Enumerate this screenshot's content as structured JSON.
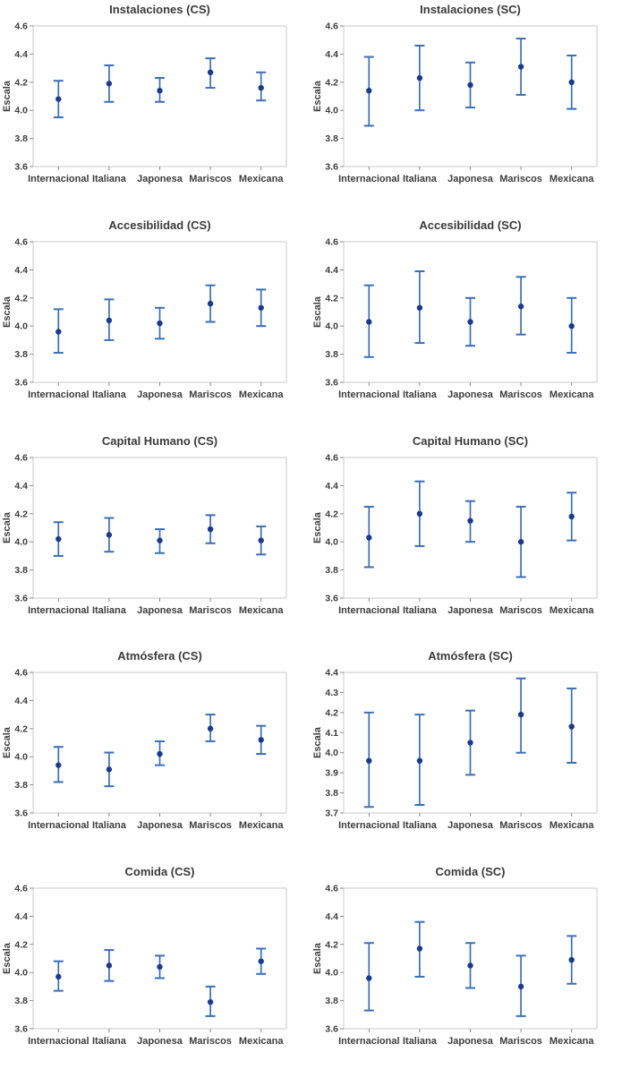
{
  "page": {
    "background": "#ffffff",
    "description_labels": {
      "ylabel": "Escala"
    }
  },
  "chart_defaults": {
    "categories": [
      "Internacional",
      "Italiana",
      "Japonesa",
      "Mariscos",
      "Mexicana"
    ],
    "ylabel": "Escala",
    "grid": false,
    "legend": "none",
    "colors": {
      "interval_line": "#3a6fb5",
      "marker": "#1b3a8c",
      "frame": "#c9c9c9",
      "tick": "#8a8a8a",
      "text": "#3d3d3d"
    }
  },
  "chart_data": [
    {
      "type": "scatter",
      "subtype": "interval-plot",
      "title": "Instalaciones (CS)",
      "ylabel": "Escala",
      "categories": [
        "Internacional",
        "Italiana",
        "Japonesa",
        "Mariscos",
        "Mexicana"
      ],
      "means": [
        4.08,
        4.19,
        4.14,
        4.27,
        4.16
      ],
      "ci_low": [
        3.95,
        4.06,
        4.06,
        4.16,
        4.07
      ],
      "ci_high": [
        4.21,
        4.32,
        4.23,
        4.37,
        4.27
      ],
      "ylim": [
        3.6,
        4.6
      ],
      "ytick_step": 0.2
    },
    {
      "type": "scatter",
      "subtype": "interval-plot",
      "title": "Instalaciones (SC)",
      "ylabel": "Escala",
      "categories": [
        "Internacional",
        "Italiana",
        "Japonesa",
        "Mariscos",
        "Mexicana"
      ],
      "means": [
        4.14,
        4.23,
        4.18,
        4.31,
        4.2
      ],
      "ci_low": [
        3.89,
        4.0,
        4.02,
        4.11,
        4.01
      ],
      "ci_high": [
        4.38,
        4.46,
        4.34,
        4.51,
        4.39
      ],
      "ylim": [
        3.6,
        4.6
      ],
      "ytick_step": 0.2
    },
    {
      "type": "scatter",
      "subtype": "interval-plot",
      "title": "Accesibilidad (CS)",
      "ylabel": "Escala",
      "categories": [
        "Internacional",
        "Italiana",
        "Japonesa",
        "Mariscos",
        "Mexicana"
      ],
      "means": [
        3.96,
        4.04,
        4.02,
        4.16,
        4.13
      ],
      "ci_low": [
        3.81,
        3.9,
        3.91,
        4.03,
        4.0
      ],
      "ci_high": [
        4.12,
        4.19,
        4.13,
        4.29,
        4.26
      ],
      "ylim": [
        3.6,
        4.6
      ],
      "ytick_step": 0.2
    },
    {
      "type": "scatter",
      "subtype": "interval-plot",
      "title": "Accesibilidad (SC)",
      "ylabel": "Escala",
      "categories": [
        "Internacional",
        "Italiana",
        "Japonesa",
        "Mariscos",
        "Mexicana"
      ],
      "means": [
        4.03,
        4.13,
        4.03,
        4.14,
        4.0
      ],
      "ci_low": [
        3.78,
        3.88,
        3.86,
        3.94,
        3.81
      ],
      "ci_high": [
        4.29,
        4.39,
        4.2,
        4.35,
        4.2
      ],
      "ylim": [
        3.6,
        4.6
      ],
      "ytick_step": 0.2
    },
    {
      "type": "scatter",
      "subtype": "interval-plot",
      "title": "Capital Humano (CS)",
      "ylabel": "Escala",
      "categories": [
        "Internacional",
        "Italiana",
        "Japonesa",
        "Mariscos",
        "Mexicana"
      ],
      "means": [
        4.02,
        4.05,
        4.01,
        4.09,
        4.01
      ],
      "ci_low": [
        3.9,
        3.93,
        3.92,
        3.99,
        3.91
      ],
      "ci_high": [
        4.14,
        4.17,
        4.09,
        4.19,
        4.11
      ],
      "ylim": [
        3.6,
        4.6
      ],
      "ytick_step": 0.2
    },
    {
      "type": "scatter",
      "subtype": "interval-plot",
      "title": "Capital Humano (SC)",
      "ylabel": "Escala",
      "categories": [
        "Internacional",
        "Italiana",
        "Japonesa",
        "Mariscos",
        "Mexicana"
      ],
      "means": [
        4.03,
        4.2,
        4.15,
        4.0,
        4.18
      ],
      "ci_low": [
        3.82,
        3.97,
        4.0,
        3.75,
        4.01
      ],
      "ci_high": [
        4.25,
        4.43,
        4.29,
        4.25,
        4.35
      ],
      "ylim": [
        3.6,
        4.6
      ],
      "ytick_step": 0.2
    },
    {
      "type": "scatter",
      "subtype": "interval-plot",
      "title": "Atmósfera (CS)",
      "ylabel": "Escala",
      "categories": [
        "Internacional",
        "Italiana",
        "Japonesa",
        "Mariscos",
        "Mexicana"
      ],
      "means": [
        3.94,
        3.91,
        4.02,
        4.2,
        4.12
      ],
      "ci_low": [
        3.82,
        3.79,
        3.94,
        4.11,
        4.02
      ],
      "ci_high": [
        4.07,
        4.03,
        4.11,
        4.3,
        4.22
      ],
      "ylim": [
        3.6,
        4.6
      ],
      "ytick_step": 0.2
    },
    {
      "type": "scatter",
      "subtype": "interval-plot",
      "title": "Atmósfera (SC)",
      "ylabel": "Escala",
      "categories": [
        "Internacional",
        "Italiana",
        "Japonesa",
        "Mariscos",
        "Mexicana"
      ],
      "means": [
        3.96,
        3.96,
        4.05,
        4.19,
        4.13
      ],
      "ci_low": [
        3.73,
        3.74,
        3.89,
        4.0,
        3.95
      ],
      "ci_high": [
        4.2,
        4.19,
        4.21,
        4.37,
        4.32
      ],
      "ylim": [
        3.7,
        4.4
      ],
      "ytick_step": 0.1
    },
    {
      "type": "scatter",
      "subtype": "interval-plot",
      "title": "Comida (CS)",
      "ylabel": "Escala",
      "categories": [
        "Internacional",
        "Italiana",
        "Japonesa",
        "Mariscos",
        "Mexicana"
      ],
      "means": [
        3.97,
        4.05,
        4.04,
        3.79,
        4.08
      ],
      "ci_low": [
        3.87,
        3.94,
        3.96,
        3.69,
        3.99
      ],
      "ci_high": [
        4.08,
        4.16,
        4.12,
        3.9,
        4.17
      ],
      "ylim": [
        3.6,
        4.6
      ],
      "ytick_step": 0.2
    },
    {
      "type": "scatter",
      "subtype": "interval-plot",
      "title": "Comida (SC)",
      "ylabel": "Escala",
      "categories": [
        "Internacional",
        "Italiana",
        "Japonesa",
        "Mariscos",
        "Mexicana"
      ],
      "means": [
        3.96,
        4.17,
        4.05,
        3.9,
        4.09
      ],
      "ci_low": [
        3.73,
        3.97,
        3.89,
        3.69,
        3.92
      ],
      "ci_high": [
        4.21,
        4.36,
        4.21,
        4.12,
        4.26
      ],
      "ylim": [
        3.6,
        4.6
      ],
      "ytick_step": 0.2
    }
  ]
}
